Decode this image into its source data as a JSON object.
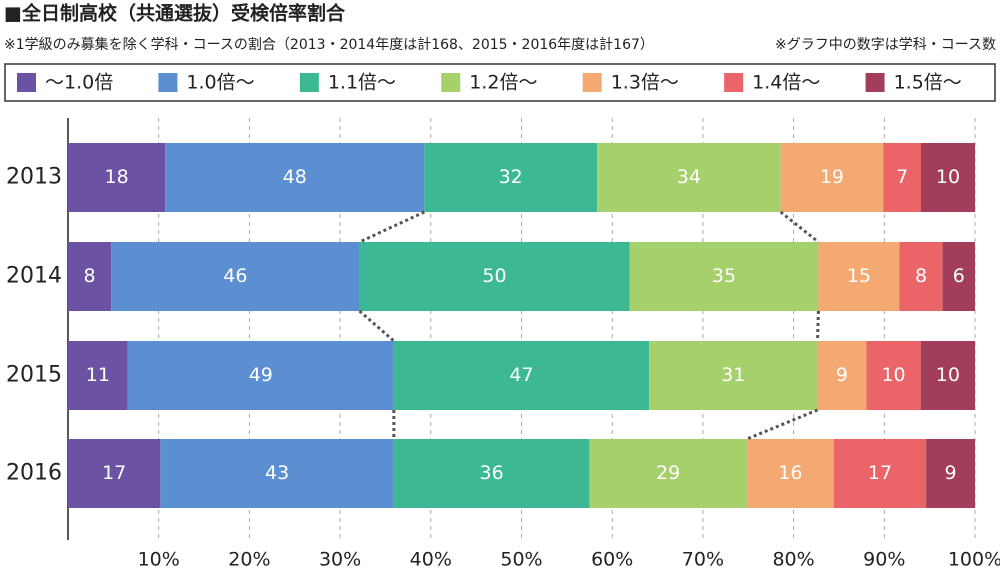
{
  "chart_data": {
    "type": "bar",
    "orientation": "horizontal",
    "stacked": "percent",
    "title": "■全日制高校（共通選抜）受検倍率割合",
    "subtitle": "※1学級のみ募集を除く学科・コースの割合（2013・2014年度は計168、2015・2016年度は計167）",
    "note": "※グラフ中の数字は学科・コース数",
    "categories": [
      "2013",
      "2014",
      "2015",
      "2016"
    ],
    "series": [
      {
        "name": "～1.0倍",
        "color": "#6b52a3",
        "values": [
          18,
          8,
          11,
          17
        ]
      },
      {
        "name": "1.0倍～",
        "color": "#5b8fd1",
        "values": [
          48,
          46,
          49,
          43
        ]
      },
      {
        "name": "1.1倍～",
        "color": "#3cb994",
        "values": [
          32,
          50,
          47,
          36
        ]
      },
      {
        "name": "1.2倍～",
        "color": "#a5d06c",
        "values": [
          34,
          35,
          31,
          29
        ]
      },
      {
        "name": "1.3倍～",
        "color": "#f5a972",
        "values": [
          19,
          15,
          9,
          16
        ]
      },
      {
        "name": "1.4倍～",
        "color": "#ea6468",
        "values": [
          7,
          8,
          10,
          17
        ]
      },
      {
        "name": "1.5倍～",
        "color": "#a23e5b",
        "values": [
          10,
          6,
          10,
          9
        ]
      }
    ],
    "xlim": [
      0,
      100
    ],
    "xticks": [
      {
        "value": 10,
        "label": "10%"
      },
      {
        "value": 20,
        "label": "20%"
      },
      {
        "value": 30,
        "label": "30%"
      },
      {
        "value": 40,
        "label": "40%"
      },
      {
        "value": 50,
        "label": "50%"
      },
      {
        "value": 60,
        "label": "60%"
      },
      {
        "value": 70,
        "label": "70%"
      },
      {
        "value": 80,
        "label": "80%"
      },
      {
        "value": 90,
        "label": "90%"
      },
      {
        "value": 100,
        "label": "100%"
      }
    ],
    "grid": true,
    "legend": "top"
  }
}
